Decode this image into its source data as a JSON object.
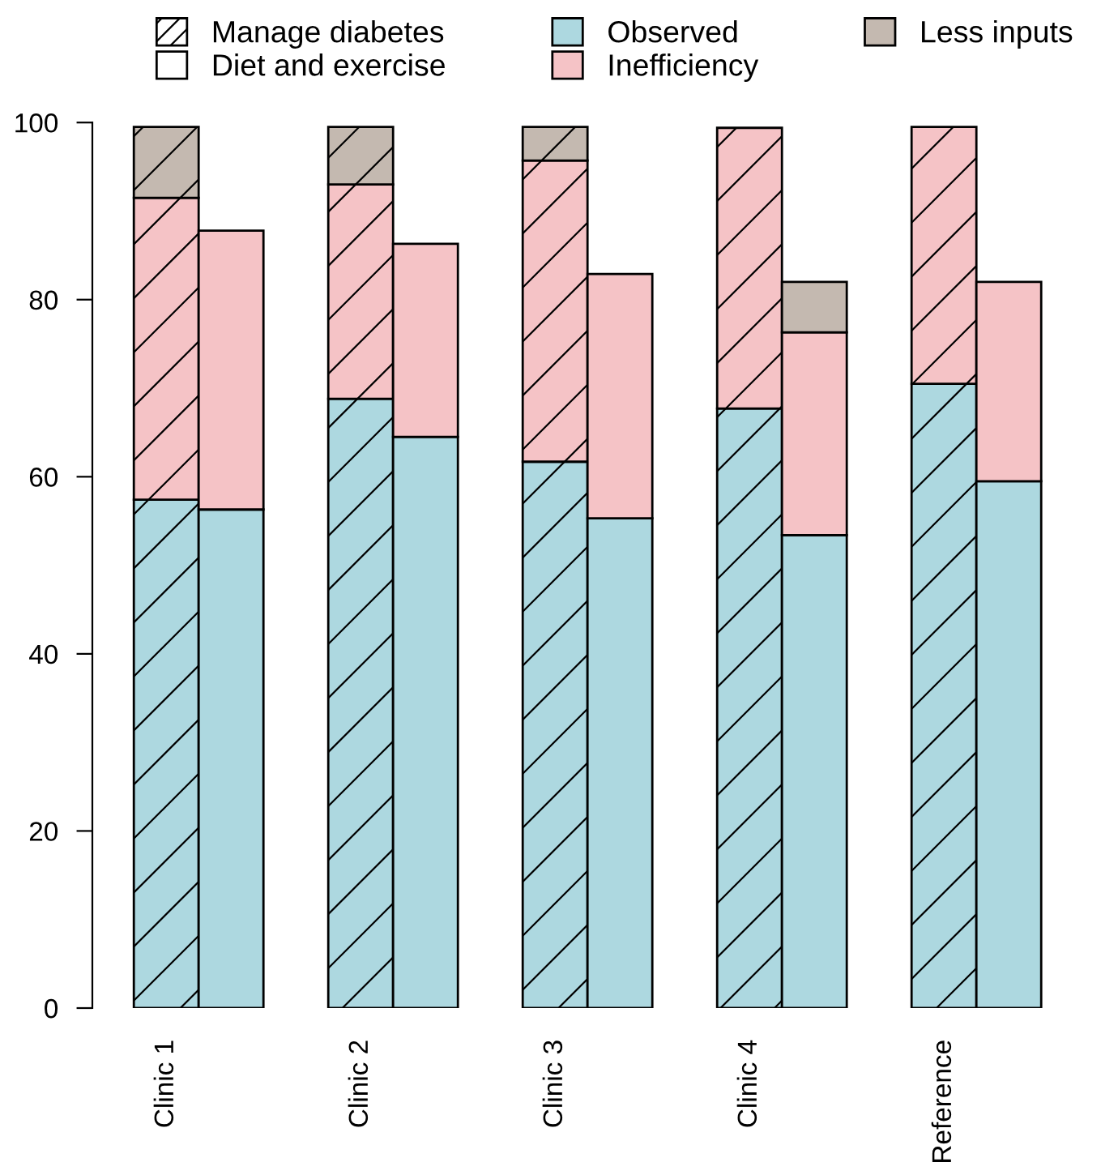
{
  "chart_data": {
    "type": "bar",
    "stacked": true,
    "categories": [
      "Clinic 1",
      null,
      "Clinic 2",
      null,
      "Clinic 3",
      null,
      "Clinic 4",
      null,
      "Reference",
      null
    ],
    "annotations": [
      "Manage diabetes",
      "Diet and exercise"
    ],
    "series": [
      {
        "name": "Observed",
        "color": "#add8e0",
        "values": [
          57.4,
          56.3,
          68.8,
          64.5,
          61.7,
          55.3,
          67.7,
          53.4,
          70.5,
          59.5
        ]
      },
      {
        "name": "Inefficiency",
        "color": "#f5c3c6",
        "values": [
          34.1,
          31.5,
          24.2,
          21.8,
          34.0,
          27.6,
          31.7,
          22.9,
          29.0,
          22.5
        ]
      },
      {
        "name": "Less inputs",
        "color": "#c4b9b0",
        "values": [
          8.0,
          null,
          6.5,
          null,
          3.8,
          null,
          null,
          5.7,
          null,
          null
        ]
      }
    ],
    "ylim": [
      0,
      100
    ],
    "yticks": [
      0,
      20,
      40,
      60,
      80,
      100
    ],
    "grid": false,
    "legend": "top"
  }
}
